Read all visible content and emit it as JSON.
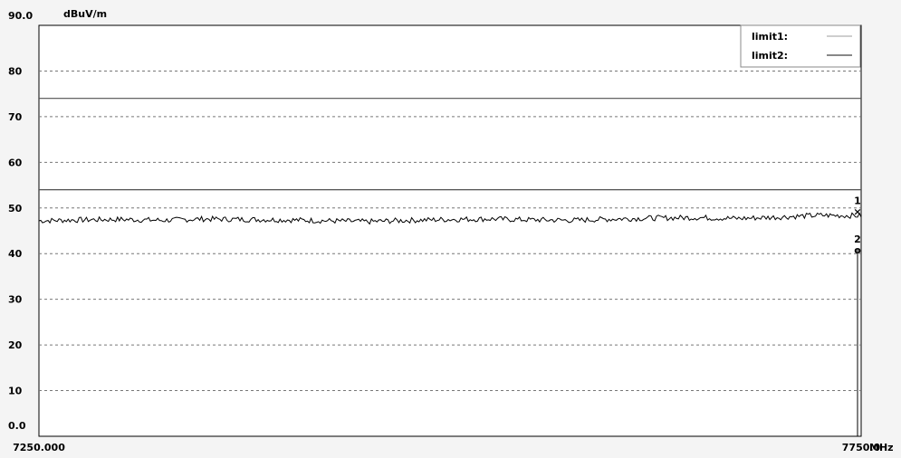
{
  "chart_data": {
    "type": "line",
    "ylabel": "dBuV/m",
    "xunit": "MHz",
    "xlim": [
      7250.0,
      7750.0
    ],
    "ylim": [
      0,
      90
    ],
    "x_tick_labels": [
      "7250.000",
      "7750.0"
    ],
    "y_tick_labels": [
      "90.0",
      "80",
      "70",
      "60",
      "50",
      "40",
      "30",
      "20",
      "10",
      "0.0"
    ],
    "y_ticks": [
      90,
      80,
      70,
      60,
      50,
      40,
      30,
      20,
      10,
      0
    ],
    "grid": true,
    "legend_position": "top-right",
    "legend": [
      {
        "name": "limit1:",
        "color": "#b0b0b0"
      },
      {
        "name": "limit2:",
        "color": "#404040"
      }
    ],
    "limits": [
      {
        "name": "limit1",
        "value": 74,
        "color": "#505050"
      },
      {
        "name": "limit2",
        "value": 54,
        "color": "#505050"
      }
    ],
    "series": [
      {
        "x": [
          7250,
          7275,
          7300,
          7325,
          7350,
          7375,
          7400,
          7425,
          7450,
          7475,
          7500,
          7525,
          7550,
          7575,
          7600,
          7625,
          7650,
          7675,
          7700,
          7725,
          7750
        ],
        "values": [
          47.2,
          47.4,
          47.5,
          47.3,
          47.6,
          47.5,
          47.4,
          47.2,
          47.0,
          47.3,
          47.5,
          47.6,
          47.4,
          47.3,
          47.6,
          47.8,
          47.9,
          47.7,
          48.0,
          48.4,
          48.3
        ],
        "color": "#000000"
      }
    ],
    "markers": [
      {
        "label": "1",
        "symbol": "×",
        "x": 7750,
        "value": 49.5
      },
      {
        "label": "2",
        "symbol": "o",
        "x": 7750,
        "value": 41.0
      }
    ]
  }
}
